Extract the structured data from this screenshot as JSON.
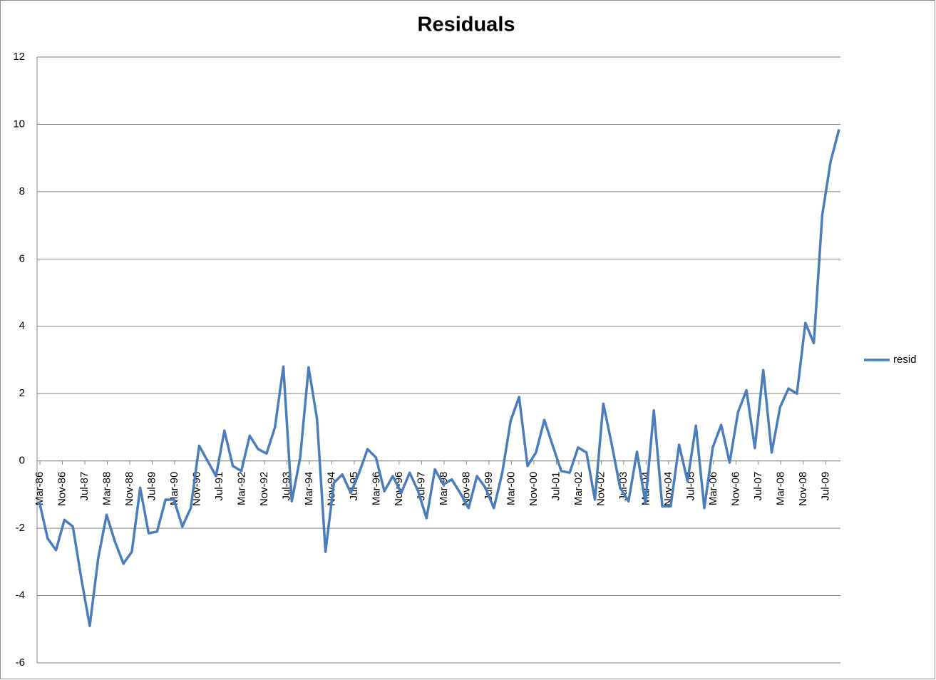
{
  "chart_data": {
    "type": "line",
    "title": "Residuals",
    "x": [
      "Mar-86",
      "Jun-86",
      "Sep-86",
      "Dec-86",
      "Mar-87",
      "Jun-87",
      "Sep-87",
      "Dec-87",
      "Mar-88",
      "Jun-88",
      "Sep-88",
      "Dec-88",
      "Mar-89",
      "Jun-89",
      "Sep-89",
      "Dec-89",
      "Mar-90",
      "Jun-90",
      "Sep-90",
      "Dec-90",
      "Mar-91",
      "Jun-91",
      "Sep-91",
      "Dec-91",
      "Mar-92",
      "Jun-92",
      "Sep-92",
      "Dec-92",
      "Mar-93",
      "Jun-93",
      "Sep-93",
      "Dec-93",
      "Mar-94",
      "Jun-94",
      "Sep-94",
      "Dec-94",
      "Mar-95",
      "Jun-95",
      "Sep-95",
      "Dec-95",
      "Mar-96",
      "Jun-96",
      "Sep-96",
      "Dec-96",
      "Mar-97",
      "Jun-97",
      "Sep-97",
      "Dec-97",
      "Mar-98",
      "Jun-98",
      "Sep-98",
      "Dec-98",
      "Mar-99",
      "Jun-99",
      "Sep-99",
      "Dec-99",
      "Mar-00",
      "Jun-00",
      "Sep-00",
      "Dec-00",
      "Mar-01",
      "Jun-01",
      "Sep-01",
      "Dec-01",
      "Mar-02",
      "Jun-02",
      "Sep-02",
      "Dec-02",
      "Mar-03",
      "Jun-03",
      "Sep-03",
      "Dec-03",
      "Mar-04",
      "Jun-04",
      "Sep-04",
      "Dec-04",
      "Mar-05",
      "Jun-05",
      "Sep-05",
      "Dec-05",
      "Mar-06",
      "Jun-06",
      "Sep-06",
      "Dec-06",
      "Mar-07",
      "Jun-07",
      "Sep-07",
      "Dec-07",
      "Mar-08",
      "Jun-08",
      "Sep-08",
      "Dec-08",
      "Mar-09",
      "Jun-09",
      "Sep-09",
      "Dec-09"
    ],
    "series": [
      {
        "name": "resid",
        "color": "#4a7ebb",
        "values": [
          -1.2,
          -2.3,
          -2.65,
          -1.75,
          -1.95,
          -3.5,
          -4.9,
          -2.9,
          -1.6,
          -2.4,
          -3.05,
          -2.7,
          -0.8,
          -2.15,
          -2.1,
          -1.15,
          -1.15,
          -1.95,
          -1.4,
          0.45,
          0.0,
          -0.45,
          0.9,
          -0.15,
          -0.3,
          0.75,
          0.35,
          0.22,
          1.0,
          2.8,
          -1.2,
          0.1,
          2.78,
          1.25,
          -2.7,
          -0.65,
          -0.4,
          -0.95,
          -0.35,
          0.35,
          0.1,
          -0.9,
          -0.45,
          -0.95,
          -0.35,
          -0.9,
          -1.7,
          -0.25,
          -0.7,
          -0.55,
          -0.95,
          -1.4,
          -0.45,
          -0.8,
          -1.4,
          -0.35,
          1.2,
          1.9,
          -0.15,
          0.25,
          1.22,
          0.45,
          -0.3,
          -0.35,
          0.4,
          0.25,
          -1.15,
          1.7,
          0.5,
          -0.8,
          -1.2,
          0.27,
          -1.25,
          1.5,
          -1.35,
          -1.35,
          0.48,
          -0.6,
          1.05,
          -1.4,
          0.4,
          1.07,
          -0.05,
          1.45,
          2.1,
          0.38,
          2.7,
          0.25,
          1.6,
          2.15,
          2.0,
          4.1,
          3.5,
          7.3,
          8.9,
          9.85
        ]
      }
    ],
    "xticks": [
      "Mar-86",
      "Nov-86",
      "Jul-87",
      "Mar-88",
      "Nov-88",
      "Jul-89",
      "Mar-90",
      "Nov-90",
      "Jul-91",
      "Mar-92",
      "Nov-92",
      "Jul-93",
      "Mar-94",
      "Nov-94",
      "Jul-95",
      "Mar-96",
      "Nov-96",
      "Jul-97",
      "Mar-98",
      "Nov-98",
      "Jul-99",
      "Mar-00",
      "Nov-00",
      "Jul-01",
      "Mar-02",
      "Nov-02",
      "Jul-03",
      "Mar-04",
      "Nov-04",
      "Jul-05",
      "Mar-06",
      "Nov-06",
      "Jul-07",
      "Mar-08",
      "Nov-08",
      "Jul-09"
    ],
    "ylim": [
      -6,
      12
    ],
    "yticks": [
      -6,
      -4,
      -2,
      0,
      2,
      4,
      6,
      8,
      10,
      12
    ],
    "grid": true,
    "legend": "right"
  }
}
